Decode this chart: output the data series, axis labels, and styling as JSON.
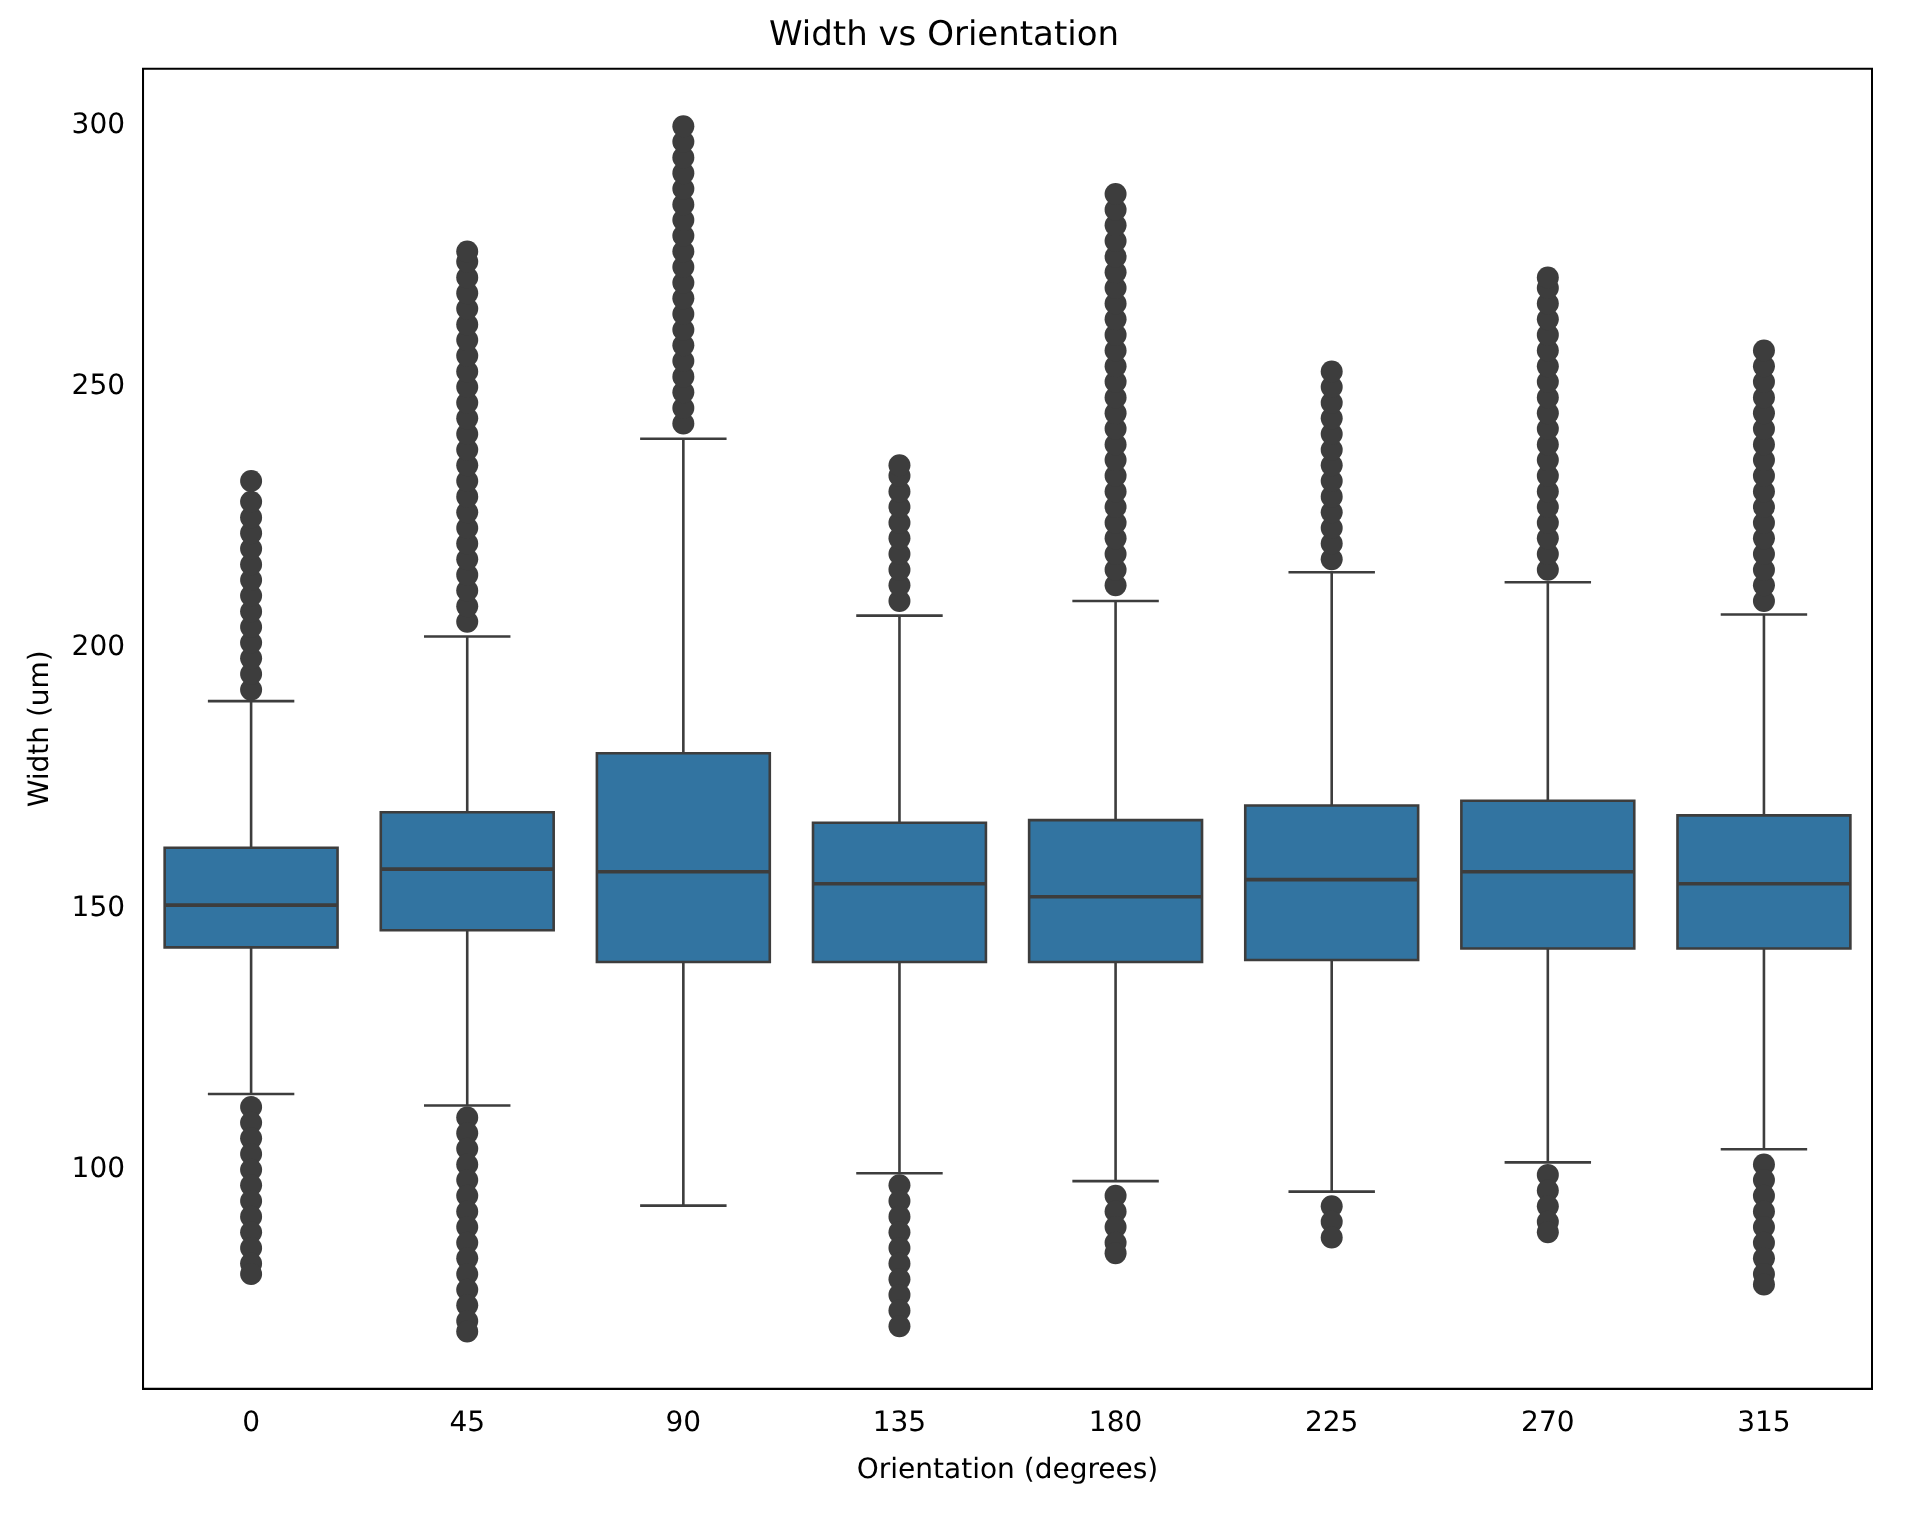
{
  "chart_data": {
    "type": "box",
    "title": "Width vs Orientation",
    "xlabel": "Orientation (degrees)",
    "ylabel": "Width (um)",
    "categories": [
      "0",
      "45",
      "90",
      "135",
      "180",
      "225",
      "270",
      "315"
    ],
    "color": "#3274a1",
    "ylim": [
      58,
      311
    ],
    "yticks": [
      100,
      150,
      200,
      250,
      300
    ],
    "boxes": [
      {
        "low": 114.5,
        "q1": 142.6,
        "median": 150.7,
        "q3": 161.7,
        "high": 189.8,
        "outliers": [
          192,
          195,
          198,
          201,
          204,
          207,
          210,
          213,
          216,
          219,
          222,
          225,
          228,
          232,
          112,
          109,
          106,
          103,
          100,
          97,
          94,
          91,
          88,
          85,
          82,
          80
        ]
      },
      {
        "low": 112.3,
        "q1": 145.9,
        "median": 157.6,
        "q3": 168.5,
        "high": 202.2,
        "outliers": [
          205,
          208,
          211,
          214,
          217,
          220,
          223,
          226,
          229,
          232,
          235,
          238,
          241,
          244,
          247,
          250,
          253,
          256,
          259,
          262,
          265,
          268,
          271,
          274,
          276,
          110,
          107,
          104,
          101,
          98,
          95,
          92,
          89,
          86,
          83,
          80,
          77,
          74,
          71,
          69
        ]
      },
      {
        "low": 93.1,
        "q1": 139.8,
        "median": 157.1,
        "q3": 179.8,
        "high": 240.1,
        "outliers": [
          243,
          246,
          249,
          252,
          255,
          258,
          261,
          264,
          267,
          270,
          273,
          276,
          279,
          282,
          285,
          288,
          291,
          294,
          297,
          300
        ]
      },
      {
        "low": 99.3,
        "q1": 139.8,
        "median": 154.8,
        "q3": 166.5,
        "high": 206.2,
        "outliers": [
          209,
          212,
          215,
          218,
          221,
          224,
          227,
          230,
          233,
          235,
          97,
          94,
          91,
          88,
          85,
          82,
          79,
          76,
          73,
          70
        ]
      },
      {
        "low": 97.8,
        "q1": 139.8,
        "median": 152.3,
        "q3": 167.0,
        "high": 209.0,
        "outliers": [
          212,
          215,
          218,
          221,
          224,
          227,
          230,
          233,
          236,
          239,
          242,
          245,
          248,
          251,
          254,
          257,
          260,
          263,
          266,
          269,
          272,
          275,
          278,
          281,
          284,
          287,
          95,
          92,
          89,
          86,
          84
        ]
      },
      {
        "low": 95.8,
        "q1": 140.2,
        "median": 155.6,
        "q3": 169.8,
        "high": 214.5,
        "outliers": [
          217,
          220,
          223,
          226,
          229,
          232,
          235,
          238,
          241,
          244,
          247,
          250,
          253,
          93,
          90,
          87
        ]
      },
      {
        "low": 101.4,
        "q1": 142.4,
        "median": 157.1,
        "q3": 170.7,
        "high": 212.6,
        "outliers": [
          215,
          218,
          221,
          224,
          227,
          230,
          233,
          236,
          239,
          242,
          245,
          248,
          251,
          254,
          257,
          260,
          263,
          266,
          269,
          271,
          99,
          96,
          93,
          90,
          88
        ]
      },
      {
        "low": 103.9,
        "q1": 142.4,
        "median": 154.8,
        "q3": 167.9,
        "high": 206.4,
        "outliers": [
          209,
          212,
          215,
          218,
          221,
          224,
          227,
          230,
          233,
          236,
          239,
          242,
          245,
          248,
          251,
          254,
          257,
          101,
          98,
          95,
          92,
          89,
          86,
          83,
          80,
          78
        ]
      }
    ]
  }
}
